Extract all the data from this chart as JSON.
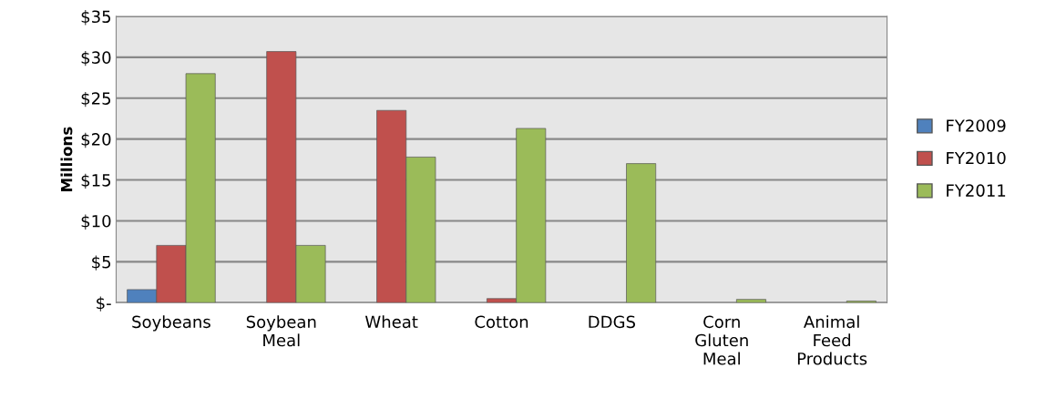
{
  "chart_data": {
    "type": "bar",
    "ylabel": "Millions",
    "categories": [
      "Soybeans",
      "Soybean\nMeal",
      "Wheat",
      "Cotton",
      "DDGS",
      "Corn\nGluten\nMeal",
      "Animal\nFeed\nProducts"
    ],
    "series": [
      {
        "name": "FY2009",
        "color": "#4f81bd",
        "values": [
          1.6,
          null,
          null,
          null,
          null,
          null,
          null
        ]
      },
      {
        "name": "FY2010",
        "color": "#c0504d",
        "values": [
          7.0,
          30.7,
          23.5,
          0.5,
          null,
          null,
          null
        ]
      },
      {
        "name": "FY2011",
        "color": "#9bbb59",
        "values": [
          28.0,
          7.0,
          17.8,
          21.3,
          17.0,
          0.4,
          0.2
        ]
      }
    ],
    "ylim": [
      0,
      35
    ],
    "yticks": [
      {
        "value": 0,
        "label": "$-"
      },
      {
        "value": 5,
        "label": "$5"
      },
      {
        "value": 10,
        "label": "$10"
      },
      {
        "value": 15,
        "label": "$15"
      },
      {
        "value": 20,
        "label": "$20"
      },
      {
        "value": 25,
        "label": "$25"
      },
      {
        "value": 30,
        "label": "$30"
      },
      {
        "value": 35,
        "label": "$35"
      }
    ],
    "grid": "y",
    "legend": "right"
  }
}
